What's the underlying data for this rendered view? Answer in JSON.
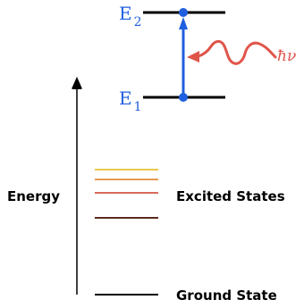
{
  "diagram": {
    "energy_axis_label": "Energy",
    "excited_states_label": "Excited States",
    "ground_state_label": "Ground State",
    "upper_level": {
      "letter": "E",
      "subscript": "2"
    },
    "lower_level": {
      "letter": "E",
      "subscript": "1"
    },
    "photon_label": "ħν",
    "excited_level_colors": [
      "#e8c84a",
      "#e49a52",
      "#d86a5a",
      "#5a2a1e"
    ],
    "transition_color": "#1f5fe0",
    "photon_color": "#e0554a",
    "level_color": "#000000"
  }
}
